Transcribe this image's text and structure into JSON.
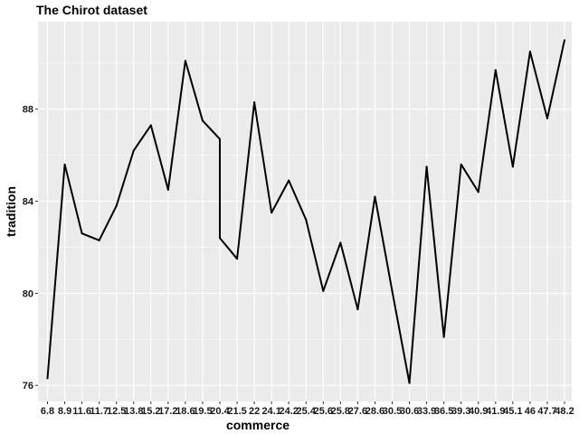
{
  "chart_data": {
    "type": "line",
    "title": "The Chirot dataset",
    "xlabel": "commerce",
    "ylabel": "tradition",
    "categories": [
      "6.8",
      "8.9",
      "11.6",
      "11.7",
      "12.5",
      "13.8",
      "15.2",
      "17.2",
      "18.6",
      "19.5",
      "20.4",
      "20.4",
      "21.5",
      "22",
      "24.1",
      "24.2",
      "25.4",
      "25.6",
      "25.8",
      "27.6",
      "28.6",
      "30.5",
      "30.6",
      "33.9",
      "36.5",
      "39.3",
      "40.9",
      "41.9",
      "45.1",
      "46",
      "47.7",
      "48.2"
    ],
    "x_tick_labels": [
      "6.8",
      "8.9",
      "11.6",
      "11.7",
      "12.5",
      "13.8",
      "15.2",
      "17.2",
      "18.6",
      "19.5",
      "20.4",
      "21.5",
      "22",
      "24.1",
      "24.2",
      "25.4",
      "25.6",
      "25.8",
      "27.6",
      "28.6",
      "30.5",
      "30.6",
      "33.9",
      "36.5",
      "39.3",
      "40.9",
      "41.9",
      "45.1",
      "46",
      "47.7",
      "48.2"
    ],
    "series": [
      {
        "values": [
          76.3,
          85.6,
          82.6,
          82.3,
          83.8,
          86.2,
          87.3,
          84.5,
          90.1,
          87.5,
          86.7,
          82.4,
          81.5,
          88.3,
          83.5,
          84.9,
          83.2,
          80.1,
          82.2,
          79.3,
          84.2,
          80.1,
          76.1,
          85.5,
          78.1,
          85.6,
          84.4,
          89.7,
          85.5,
          90.5,
          87.6,
          91.0
        ]
      }
    ],
    "x_index_positions": [
      0,
      1,
      2,
      3,
      4,
      5,
      6,
      7,
      8,
      9,
      10,
      10,
      11,
      12,
      13,
      14,
      15,
      16,
      17,
      18,
      19,
      20,
      21,
      22,
      23,
      24,
      25,
      26,
      27,
      28,
      29,
      30
    ],
    "y_ticks": [
      76,
      80,
      84,
      88
    ],
    "ylim": [
      75.3,
      91.8
    ],
    "grid": true,
    "line_color": "#000000",
    "panel_background": "#ebebeb",
    "grid_color": "#ffffff"
  }
}
